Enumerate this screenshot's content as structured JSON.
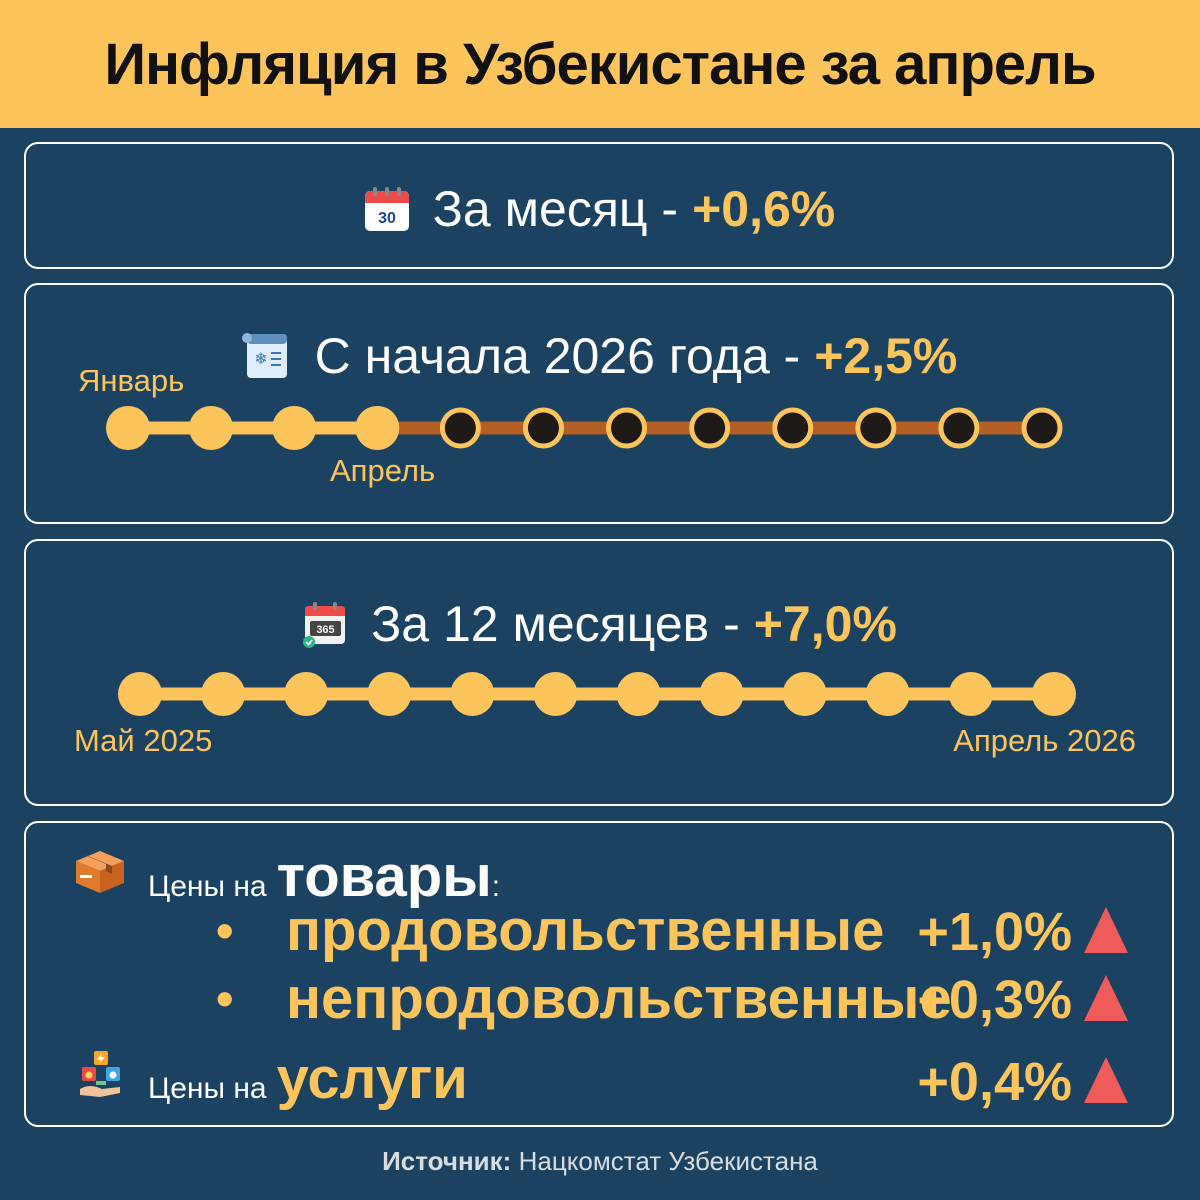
{
  "title": "Инфляция в Узбекистане за апрель",
  "month": {
    "icon": "calendar-30-icon",
    "label": "За месяц -",
    "value": "+0,6%",
    "calendar_day": "30"
  },
  "ytd": {
    "icon": "winter-calendar-icon",
    "label": "С начала 2026 года -",
    "value": "+2,5%",
    "start_label": "Январь",
    "current_label": "Апрель",
    "months_total": 12,
    "months_elapsed": 4
  },
  "twelve": {
    "icon": "calendar-365-icon",
    "label": "За 12 месяцев -",
    "value": "+7,0%",
    "calendar_text": "365",
    "start_label": "Май 2025",
    "end_label": "Апрель 2026",
    "months_total": 12
  },
  "goods": {
    "icon": "box-icon",
    "prefix": "Цены на",
    "word": "товары",
    "colon": ":",
    "items": [
      {
        "label": "продовольственные",
        "value": "+1,0%",
        "trend": "up"
      },
      {
        "label": "непродовольственные",
        "value": "+0,3%",
        "trend": "up"
      }
    ]
  },
  "services": {
    "icon": "utilities-services-icon",
    "prefix": "Цены на",
    "word": "услуги",
    "value": "+0,4%",
    "trend": "up"
  },
  "source": {
    "label": "Источник:",
    "text": "Нацкомстат Узбекистана"
  },
  "colors": {
    "background": "#1b4260",
    "accent": "#fdc45c",
    "inactive_line": "#b35f26",
    "inactive_dot": "#1d1a17",
    "arrow": "#ef5b5b"
  }
}
